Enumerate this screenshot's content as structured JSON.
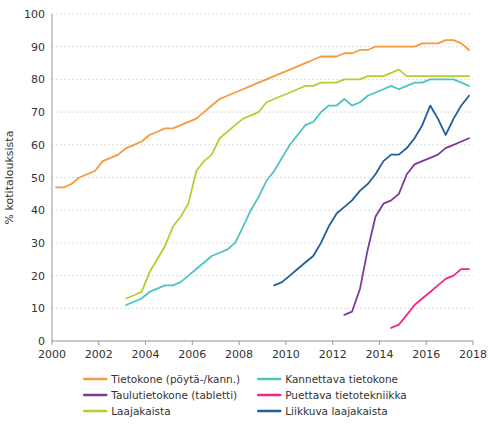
{
  "chart_data": {
    "type": "line",
    "ylabel": "% kotitalouksista",
    "xlim": [
      2000,
      2018
    ],
    "ylim": [
      0,
      100
    ],
    "xticks": [
      2000,
      2002,
      2004,
      2006,
      2008,
      2010,
      2012,
      2014,
      2016,
      2018
    ],
    "yticks": [
      0,
      10,
      20,
      30,
      40,
      50,
      60,
      70,
      80,
      90,
      100
    ],
    "grid": true,
    "legend": "bottom",
    "series": [
      {
        "name": "Tietokone (pöytä-/kann.)",
        "color": "#F59B3C",
        "x": [
          2000.17,
          2000.5,
          2000.83,
          2001.17,
          2001.5,
          2001.83,
          2002.17,
          2002.5,
          2002.83,
          2003.17,
          2003.5,
          2003.83,
          2004.17,
          2004.5,
          2004.83,
          2005.17,
          2005.5,
          2005.83,
          2006.17,
          2006.5,
          2006.83,
          2007.17,
          2007.5,
          2007.83,
          2008.17,
          2008.5,
          2008.83,
          2009.17,
          2009.5,
          2009.83,
          2010.17,
          2010.5,
          2010.83,
          2011.17,
          2011.5,
          2011.83,
          2012.17,
          2012.5,
          2012.83,
          2013.17,
          2013.5,
          2013.83,
          2014.17,
          2014.5,
          2014.83,
          2015.17,
          2015.5,
          2015.83,
          2016.17,
          2016.5,
          2016.83,
          2017.17,
          2017.5,
          2017.83
        ],
        "values": [
          47,
          47,
          48,
          50,
          51,
          52,
          55,
          56,
          57,
          59,
          60,
          61,
          63,
          64,
          65,
          65,
          66,
          67,
          68,
          70,
          72,
          74,
          75,
          76,
          77,
          78,
          79,
          80,
          81,
          82,
          83,
          84,
          85,
          86,
          87,
          87,
          87,
          88,
          88,
          89,
          89,
          90,
          90,
          90,
          90,
          90,
          90,
          91,
          91,
          91,
          92,
          92,
          91,
          89
        ]
      },
      {
        "name": "Kannettava tietokone",
        "color": "#4DC4C4",
        "x": [
          2003.17,
          2003.5,
          2003.83,
          2004.17,
          2004.5,
          2004.83,
          2005.17,
          2005.5,
          2005.83,
          2006.17,
          2006.5,
          2006.83,
          2007.17,
          2007.5,
          2007.83,
          2008.17,
          2008.5,
          2008.83,
          2009.17,
          2009.5,
          2009.83,
          2010.17,
          2010.5,
          2010.83,
          2011.17,
          2011.5,
          2011.83,
          2012.17,
          2012.5,
          2012.83,
          2013.17,
          2013.5,
          2013.83,
          2014.17,
          2014.5,
          2014.83,
          2015.17,
          2015.5,
          2015.83,
          2016.17,
          2016.5,
          2016.83,
          2017.17,
          2017.5,
          2017.83
        ],
        "values": [
          11,
          12,
          13,
          15,
          16,
          17,
          17,
          18,
          20,
          22,
          24,
          26,
          27,
          28,
          30,
          35,
          40,
          44,
          49,
          52,
          56,
          60,
          63,
          66,
          67,
          70,
          72,
          72,
          74,
          72,
          73,
          75,
          76,
          77,
          78,
          77,
          78,
          79,
          79,
          80,
          80,
          80,
          80,
          79,
          78
        ]
      },
      {
        "name": "Taulutietokone (tabletti)",
        "color": "#7B3B96",
        "x": [
          2012.5,
          2012.83,
          2013.17,
          2013.5,
          2013.83,
          2014.17,
          2014.5,
          2014.83,
          2015.17,
          2015.5,
          2015.83,
          2016.17,
          2016.5,
          2016.83,
          2017.17,
          2017.5,
          2017.83
        ],
        "values": [
          8,
          9,
          16,
          28,
          38,
          42,
          43,
          45,
          51,
          54,
          55,
          56,
          57,
          59,
          60,
          61,
          62
        ]
      },
      {
        "name": "Puettava tietotekniikka",
        "color": "#F0278C",
        "x": [
          2014.5,
          2014.83,
          2015.17,
          2015.5,
          2015.83,
          2016.17,
          2016.5,
          2016.83,
          2017.17,
          2017.5,
          2017.83
        ],
        "values": [
          4,
          5,
          8,
          11,
          13,
          15,
          17,
          19,
          20,
          22,
          22
        ]
      },
      {
        "name": "Laajakaista",
        "color": "#BBCC33",
        "x": [
          2003.17,
          2003.5,
          2003.83,
          2004.17,
          2004.5,
          2004.83,
          2005.17,
          2005.5,
          2005.83,
          2006.17,
          2006.5,
          2006.83,
          2007.17,
          2007.5,
          2007.83,
          2008.17,
          2008.5,
          2008.83,
          2009.17,
          2009.5,
          2009.83,
          2010.17,
          2010.5,
          2010.83,
          2011.17,
          2011.5,
          2011.83,
          2012.17,
          2012.5,
          2012.83,
          2013.17,
          2013.5,
          2013.83,
          2014.17,
          2014.5,
          2014.83,
          2015.17,
          2015.5,
          2015.83,
          2016.17,
          2016.5,
          2016.83,
          2017.17,
          2017.5,
          2017.83
        ],
        "values": [
          13,
          14,
          15,
          21,
          25,
          29,
          35,
          38,
          42,
          52,
          55,
          57,
          62,
          64,
          66,
          68,
          69,
          70,
          73,
          74,
          75,
          76,
          77,
          78,
          78,
          79,
          79,
          79,
          80,
          80,
          80,
          81,
          81,
          81,
          82,
          83,
          81,
          81,
          81,
          81,
          81,
          81,
          81,
          81,
          81
        ]
      },
      {
        "name": "Liikkuva laajakaista",
        "color": "#1E5FA0",
        "x": [
          2009.5,
          2009.83,
          2010.17,
          2010.5,
          2010.83,
          2011.17,
          2011.5,
          2011.83,
          2012.17,
          2012.5,
          2012.83,
          2013.17,
          2013.5,
          2013.83,
          2014.17,
          2014.5,
          2014.83,
          2015.17,
          2015.5,
          2015.83,
          2016.17,
          2016.5,
          2016.83,
          2017.17,
          2017.5,
          2017.83
        ],
        "values": [
          17,
          18,
          20,
          22,
          24,
          26,
          30,
          35,
          39,
          41,
          43,
          46,
          48,
          51,
          55,
          57,
          57,
          59,
          62,
          66,
          72,
          68,
          63,
          68,
          72,
          75
        ]
      }
    ]
  }
}
